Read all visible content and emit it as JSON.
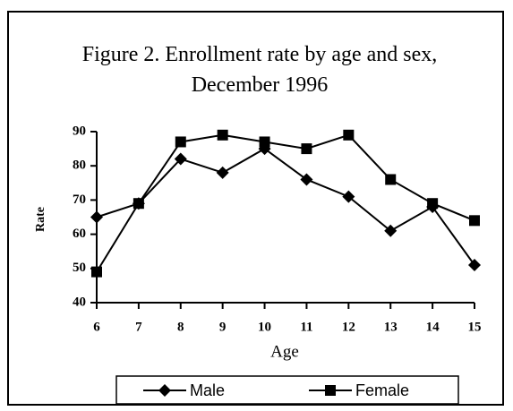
{
  "chart_data": {
    "type": "line",
    "title": "Figure 2. Enrollment rate by age and sex, December 1996",
    "x_label": "Age",
    "y_label": "Rate",
    "x": [
      6,
      7,
      8,
      9,
      10,
      11,
      12,
      13,
      14,
      15
    ],
    "series": [
      {
        "name": "Male",
        "color": "#000000",
        "marker": "diamond",
        "values": [
          65,
          69,
          82,
          78,
          85,
          76,
          71,
          61,
          68,
          51
        ]
      },
      {
        "name": "Female",
        "color": "#000000",
        "marker": "square",
        "values": [
          49,
          69,
          87,
          89,
          87,
          85,
          89,
          76,
          69,
          64
        ]
      }
    ],
    "xlim": [
      6,
      15
    ],
    "xticks": [
      6,
      7,
      8,
      9,
      10,
      11,
      12,
      13,
      14,
      15
    ],
    "ylim": [
      40,
      90
    ],
    "yticks": [
      40,
      50,
      60,
      70,
      80,
      90
    ],
    "legend": "bottom"
  }
}
